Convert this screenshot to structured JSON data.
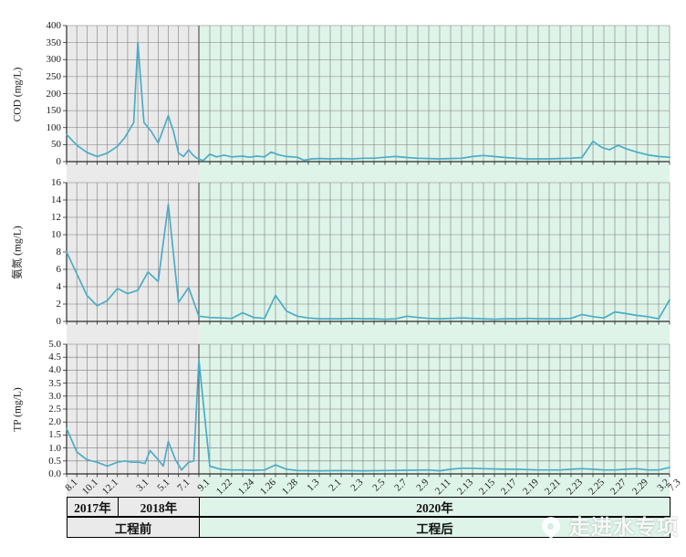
{
  "watermark": {
    "text": "走进水专项",
    "icon": "water-drop-logo"
  },
  "colors": {
    "line": "#4bacc6",
    "before_bg": "#eaeaea",
    "after_bg": "#def4e9",
    "grid": "#7c7c7c",
    "axis": "#2a2a2a",
    "boundary": "#4a4a4a",
    "band_border": "#000000"
  },
  "x_axis": {
    "boundary_index": 13,
    "last_index": 56,
    "tick_labels": [
      {
        "t": "8.1",
        "i": 0
      },
      {
        "t": "10.1",
        "i": 2
      },
      {
        "t": "12.1",
        "i": 4
      },
      {
        "t": "3.1",
        "i": 7
      },
      {
        "t": "5.1",
        "i": 9
      },
      {
        "t": "7.1",
        "i": 11
      },
      {
        "t": "9.1",
        "i": 13
      },
      {
        "t": "1.22",
        "i": 15
      },
      {
        "t": "1.24",
        "i": 17
      },
      {
        "t": "1.26",
        "i": 19
      },
      {
        "t": "1.28",
        "i": 21
      },
      {
        "t": "1.3",
        "i": 23
      },
      {
        "t": "2.1",
        "i": 25
      },
      {
        "t": "2.3",
        "i": 27
      },
      {
        "t": "2.5",
        "i": 29
      },
      {
        "t": "2.7",
        "i": 31
      },
      {
        "t": "2.9",
        "i": 33
      },
      {
        "t": "2.11",
        "i": 35
      },
      {
        "t": "2.13",
        "i": 37
      },
      {
        "t": "2.15",
        "i": 39
      },
      {
        "t": "2.17",
        "i": 41
      },
      {
        "t": "2.19",
        "i": 43
      },
      {
        "t": "2.21",
        "i": 45
      },
      {
        "t": "2.23",
        "i": 47
      },
      {
        "t": "2.25",
        "i": 49
      },
      {
        "t": "2.27",
        "i": 51
      },
      {
        "t": "2.29",
        "i": 53
      },
      {
        "t": "3.2",
        "i": 55
      },
      {
        "t": "7.3",
        "i": 56
      }
    ]
  },
  "periods": {
    "years": [
      {
        "label": "2017年",
        "from": 0,
        "to": 5,
        "zone": "before"
      },
      {
        "label": "2018年",
        "from": 5,
        "to": 13,
        "zone": "before"
      },
      {
        "label": "2020年",
        "from": 13,
        "to": 56,
        "zone": "after"
      }
    ],
    "phases": [
      {
        "label": "工程前",
        "from": 0,
        "to": 13,
        "zone": "before"
      },
      {
        "label": "工程后",
        "from": 13,
        "to": 56,
        "zone": "after"
      }
    ]
  },
  "chart_data": [
    {
      "type": "line",
      "title": "COD over time, before vs after project",
      "ylabel": "COD (mg/L)",
      "ylim": [
        0,
        400
      ],
      "ytick_labels": [
        "0",
        "50",
        "100",
        "150",
        "200",
        "250",
        "300",
        "350",
        "400"
      ],
      "grid": true,
      "legend": "none",
      "series": [
        {
          "name": "COD",
          "points": [
            [
              0,
              80
            ],
            [
              1,
              48
            ],
            [
              2,
              27
            ],
            [
              3,
              15
            ],
            [
              4,
              25
            ],
            [
              5,
              45
            ],
            [
              5.7,
              70
            ],
            [
              6.2,
              95
            ],
            [
              6.6,
              115
            ],
            [
              7,
              350
            ],
            [
              7.6,
              115
            ],
            [
              8.3,
              90
            ],
            [
              9,
              55
            ],
            [
              10,
              135
            ],
            [
              10.5,
              90
            ],
            [
              11,
              25
            ],
            [
              11.5,
              15
            ],
            [
              12,
              35
            ],
            [
              12.4,
              20
            ],
            [
              12.8,
              10
            ],
            [
              13.4,
              3
            ],
            [
              14,
              22
            ],
            [
              14.6,
              14
            ],
            [
              15.3,
              19
            ],
            [
              16,
              14
            ],
            [
              17,
              16
            ],
            [
              17.6,
              13
            ],
            [
              18.3,
              16
            ],
            [
              19,
              14
            ],
            [
              19.6,
              28
            ],
            [
              20.3,
              20
            ],
            [
              21,
              15
            ],
            [
              22,
              13
            ],
            [
              22.6,
              4
            ],
            [
              23.3,
              8
            ],
            [
              24,
              9
            ],
            [
              25,
              8
            ],
            [
              26,
              9
            ],
            [
              27,
              8
            ],
            [
              28,
              10
            ],
            [
              29,
              10
            ],
            [
              30,
              13
            ],
            [
              31,
              15
            ],
            [
              32,
              12
            ],
            [
              33,
              10
            ],
            [
              34,
              9
            ],
            [
              35,
              8
            ],
            [
              36,
              9
            ],
            [
              37,
              10
            ],
            [
              38,
              15
            ],
            [
              39,
              18
            ],
            [
              40,
              15
            ],
            [
              41,
              12
            ],
            [
              42,
              10
            ],
            [
              43,
              8
            ],
            [
              44,
              8
            ],
            [
              45,
              8
            ],
            [
              46,
              9
            ],
            [
              47,
              10
            ],
            [
              48,
              12
            ],
            [
              49,
              60
            ],
            [
              49.8,
              42
            ],
            [
              50.5,
              35
            ],
            [
              51.3,
              48
            ],
            [
              52,
              38
            ],
            [
              53,
              28
            ],
            [
              54,
              20
            ],
            [
              55,
              15
            ],
            [
              56,
              13
            ]
          ]
        }
      ]
    },
    {
      "type": "line",
      "title": "Ammonia nitrogen over time, before vs after project",
      "ylabel": "氨氮 (mg/L)",
      "ylim": [
        0,
        16
      ],
      "ytick_labels": [
        "0",
        "2",
        "4",
        "6",
        "8",
        "10",
        "12",
        "14",
        "16"
      ],
      "grid": true,
      "legend": "none",
      "series": [
        {
          "name": "氨氮",
          "points": [
            [
              0,
              8.0
            ],
            [
              1,
              5.5
            ],
            [
              2,
              3.0
            ],
            [
              3,
              1.8
            ],
            [
              4,
              2.4
            ],
            [
              5,
              3.8
            ],
            [
              6,
              3.2
            ],
            [
              7,
              3.6
            ],
            [
              8,
              5.7
            ],
            [
              9,
              4.6
            ],
            [
              10,
              13.5
            ],
            [
              11,
              2.2
            ],
            [
              12,
              3.9
            ],
            [
              13,
              0.6
            ],
            [
              14,
              0.45
            ],
            [
              15,
              0.4
            ],
            [
              16,
              0.35
            ],
            [
              17,
              1.0
            ],
            [
              18,
              0.45
            ],
            [
              19,
              0.35
            ],
            [
              20,
              3.0
            ],
            [
              21,
              1.2
            ],
            [
              22,
              0.6
            ],
            [
              23,
              0.4
            ],
            [
              24,
              0.3
            ],
            [
              25,
              0.3
            ],
            [
              26,
              0.3
            ],
            [
              27,
              0.35
            ],
            [
              28,
              0.3
            ],
            [
              29,
              0.3
            ],
            [
              30,
              0.25
            ],
            [
              31,
              0.3
            ],
            [
              32,
              0.6
            ],
            [
              33,
              0.45
            ],
            [
              34,
              0.35
            ],
            [
              35,
              0.3
            ],
            [
              36,
              0.35
            ],
            [
              37,
              0.4
            ],
            [
              38,
              0.35
            ],
            [
              39,
              0.3
            ],
            [
              40,
              0.25
            ],
            [
              41,
              0.3
            ],
            [
              42,
              0.3
            ],
            [
              43,
              0.35
            ],
            [
              44,
              0.3
            ],
            [
              45,
              0.3
            ],
            [
              46,
              0.3
            ],
            [
              47,
              0.35
            ],
            [
              48,
              0.8
            ],
            [
              49,
              0.55
            ],
            [
              50,
              0.4
            ],
            [
              51,
              1.1
            ],
            [
              52,
              0.9
            ],
            [
              53,
              0.7
            ],
            [
              54,
              0.55
            ],
            [
              55,
              0.3
            ],
            [
              56,
              2.5
            ]
          ]
        }
      ]
    },
    {
      "type": "line",
      "title": "TP over time, before vs after project",
      "ylabel": "TP (mg/L)",
      "ylim": [
        0,
        5
      ],
      "ytick_labels": [
        "0.0",
        "0.5",
        "1.0",
        "1.5",
        "2.0",
        "2.5",
        "3.0",
        "3.5",
        "4.0",
        "4.5",
        "5.0"
      ],
      "grid": true,
      "legend": "none",
      "series": [
        {
          "name": "TP",
          "points": [
            [
              0,
              1.75
            ],
            [
              1,
              0.85
            ],
            [
              2,
              0.55
            ],
            [
              3,
              0.45
            ],
            [
              4,
              0.3
            ],
            [
              5,
              0.45
            ],
            [
              5.7,
              0.5
            ],
            [
              6.4,
              0.45
            ],
            [
              7.1,
              0.45
            ],
            [
              7.7,
              0.4
            ],
            [
              8.2,
              0.9
            ],
            [
              9,
              0.55
            ],
            [
              9.5,
              0.3
            ],
            [
              10,
              1.25
            ],
            [
              10.7,
              0.55
            ],
            [
              11.3,
              0.15
            ],
            [
              12,
              0.45
            ],
            [
              12.5,
              0.5
            ],
            [
              13,
              4.4
            ],
            [
              14,
              0.3
            ],
            [
              15,
              0.18
            ],
            [
              16,
              0.15
            ],
            [
              17,
              0.15
            ],
            [
              18,
              0.14
            ],
            [
              19,
              0.15
            ],
            [
              20,
              0.35
            ],
            [
              21,
              0.18
            ],
            [
              22,
              0.13
            ],
            [
              24,
              0.12
            ],
            [
              26,
              0.13
            ],
            [
              28,
              0.12
            ],
            [
              30,
              0.13
            ],
            [
              32,
              0.14
            ],
            [
              34,
              0.15
            ],
            [
              35,
              0.12
            ],
            [
              36,
              0.18
            ],
            [
              37,
              0.22
            ],
            [
              38,
              0.22
            ],
            [
              39,
              0.2
            ],
            [
              41,
              0.18
            ],
            [
              42,
              0.18
            ],
            [
              44,
              0.15
            ],
            [
              46,
              0.15
            ],
            [
              47,
              0.18
            ],
            [
              48,
              0.2
            ],
            [
              49,
              0.18
            ],
            [
              50,
              0.15
            ],
            [
              51,
              0.15
            ],
            [
              52,
              0.18
            ],
            [
              53,
              0.2
            ],
            [
              54,
              0.15
            ],
            [
              55,
              0.15
            ],
            [
              56,
              0.25
            ]
          ]
        }
      ]
    }
  ]
}
